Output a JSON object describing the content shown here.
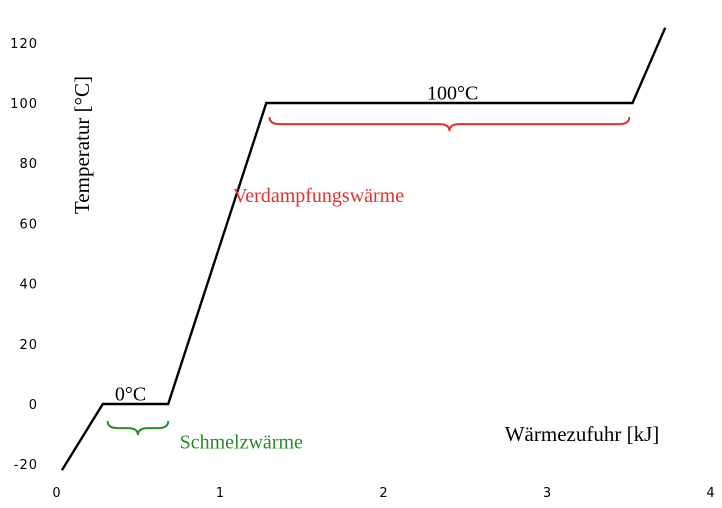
{
  "chart_data": {
    "type": "line",
    "title": "",
    "xlabel": "Wärmezufuhr [kJ]",
    "ylabel": "Temperatur [°C]",
    "xlim": [
      0,
      4
    ],
    "ylim": [
      -20,
      130
    ],
    "xticks": [
      "0",
      "1",
      "2",
      "3",
      "4"
    ],
    "yticks": [
      "-20",
      "0",
      "20",
      "40",
      "60",
      "80",
      "100",
      "120"
    ],
    "grid": false,
    "series": [
      {
        "x": [
          0.03,
          0.28,
          0.68,
          1.28,
          3.52,
          3.72
        ],
        "y": [
          -22,
          0,
          0,
          100,
          100,
          125
        ]
      }
    ],
    "annotations": [
      {
        "text": "0°C",
        "x": 0.45,
        "y": 3.5,
        "color": "#000000"
      },
      {
        "text": "100°C",
        "x": 2.42,
        "y": 103.5,
        "color": "#000000"
      },
      {
        "text": "Schmelzwärme",
        "x": 0.75,
        "y": -12.5,
        "color": "#2a8a2a"
      },
      {
        "text": "Verdampfungswärme",
        "x": 1.6,
        "y": 69.5,
        "color": "#e03030"
      }
    ],
    "braces": [
      {
        "from": 0.31,
        "to": 0.68,
        "y": -8,
        "color": "#2a8a2a"
      },
      {
        "from": 1.3,
        "to": 3.5,
        "y": 93,
        "color": "#e03030"
      }
    ]
  }
}
